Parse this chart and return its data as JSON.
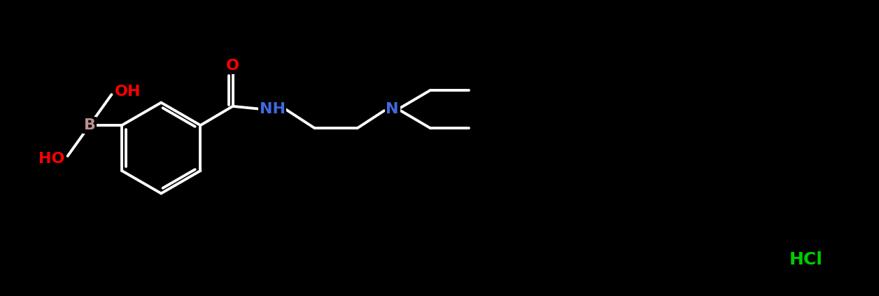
{
  "bg_color": "#000000",
  "bond_color": "#ffffff",
  "bond_width": 2.8,
  "atom_colors": {
    "B": "#bc8f8f",
    "O": "#ff0000",
    "N_amide": "#4169e1",
    "N_amine": "#4169e1",
    "HCl": "#00cc00",
    "C": "#ffffff"
  },
  "font_size_atom": 16,
  "font_size_hcl": 18,
  "figsize": [
    12.56,
    4.23
  ],
  "dpi": 100,
  "xlim": [
    0,
    30
  ],
  "ylim": [
    0,
    10
  ]
}
